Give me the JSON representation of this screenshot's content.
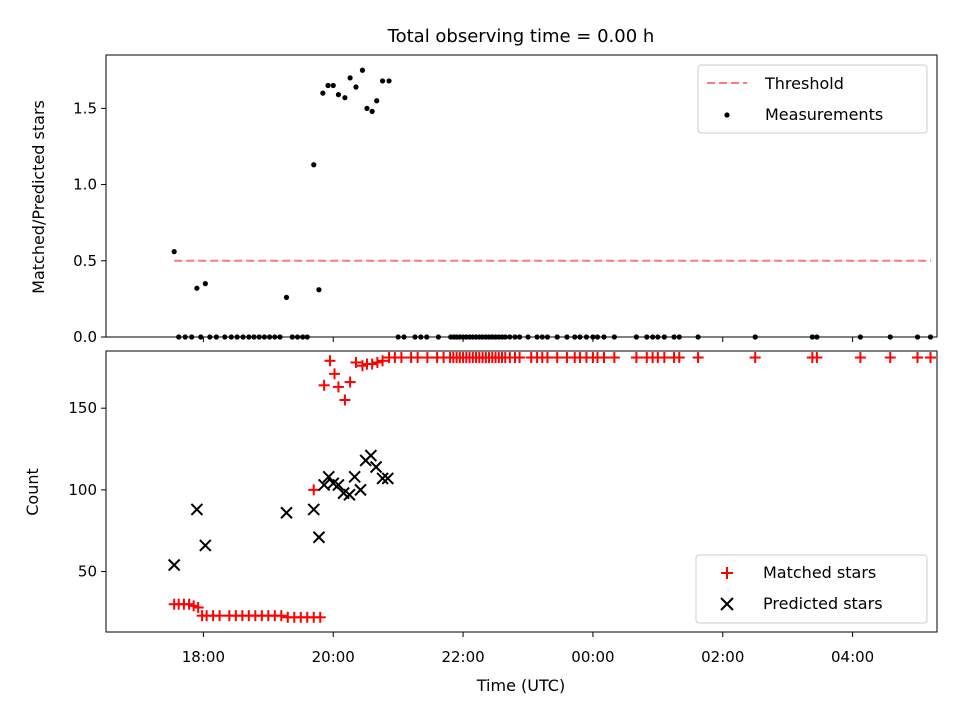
{
  "chart_data": {
    "type": "scatter",
    "title": "Total observing time = 0.00 h",
    "xlabel": "Time (UTC)",
    "x_unit": "hours since 17:00 UTC",
    "xlim": [
      16.5,
      29.3
    ],
    "xticks": [
      {
        "value": 18,
        "label": "18:00"
      },
      {
        "value": 20,
        "label": "20:00"
      },
      {
        "value": 22,
        "label": "22:00"
      },
      {
        "value": 24,
        "label": "00:00"
      },
      {
        "value": 26,
        "label": "02:00"
      },
      {
        "value": 28,
        "label": "04:00"
      }
    ],
    "panels": [
      {
        "id": "ratio",
        "ylabel": "Matched/Predicted stars",
        "ylim": [
          0,
          1.85
        ],
        "yticks": [
          {
            "value": 0.0,
            "label": "0.0"
          },
          {
            "value": 0.5,
            "label": "0.5"
          },
          {
            "value": 1.0,
            "label": "1.0"
          },
          {
            "value": 1.5,
            "label": "1.5"
          }
        ],
        "legend": {
          "position": "upper right",
          "entries": [
            {
              "name": "Threshold",
              "style": "dashed-line",
              "color": "#ff7777"
            },
            {
              "name": "Measurements",
              "style": "dot",
              "color": "#000000"
            }
          ]
        },
        "threshold": {
          "name": "Threshold",
          "value": 0.5,
          "x_range": [
            17.55,
            29.45
          ],
          "color": "#ff7777"
        },
        "series": [
          {
            "name": "Measurements",
            "marker": "dot",
            "color": "#000000",
            "points": [
              [
                17.55,
                0.56
              ],
              [
                17.62,
                0
              ],
              [
                17.72,
                0
              ],
              [
                17.82,
                0
              ],
              [
                17.9,
                0.32
              ],
              [
                17.96,
                0
              ],
              [
                18.03,
                0.35
              ],
              [
                18.1,
                0
              ],
              [
                18.2,
                0
              ],
              [
                18.33,
                0
              ],
              [
                18.43,
                0
              ],
              [
                18.52,
                0
              ],
              [
                18.61,
                0
              ],
              [
                18.7,
                0
              ],
              [
                18.78,
                0
              ],
              [
                18.86,
                0
              ],
              [
                18.94,
                0
              ],
              [
                19.02,
                0
              ],
              [
                19.1,
                0
              ],
              [
                19.18,
                0
              ],
              [
                19.28,
                0.26
              ],
              [
                19.37,
                0
              ],
              [
                19.45,
                0
              ],
              [
                19.53,
                0
              ],
              [
                19.6,
                0
              ],
              [
                19.7,
                1.13
              ],
              [
                19.78,
                0.31
              ],
              [
                19.84,
                1.6
              ],
              [
                19.92,
                1.65
              ],
              [
                20.0,
                1.65
              ],
              [
                20.08,
                1.59
              ],
              [
                20.18,
                1.57
              ],
              [
                20.26,
                1.7
              ],
              [
                20.35,
                1.64
              ],
              [
                20.45,
                1.75
              ],
              [
                20.52,
                1.5
              ],
              [
                20.6,
                1.48
              ],
              [
                20.67,
                1.55
              ],
              [
                20.76,
                1.68
              ],
              [
                20.86,
                1.68
              ],
              [
                21.0,
                0
              ],
              [
                21.09,
                0
              ],
              [
                21.26,
                0
              ],
              [
                21.35,
                0
              ],
              [
                21.44,
                0
              ],
              [
                21.62,
                0
              ],
              [
                21.81,
                0
              ],
              [
                21.86,
                0
              ],
              [
                21.9,
                0
              ],
              [
                21.95,
                0
              ],
              [
                22.0,
                0
              ],
              [
                22.05,
                0
              ],
              [
                22.1,
                0
              ],
              [
                22.15,
                0
              ],
              [
                22.2,
                0
              ],
              [
                22.25,
                0
              ],
              [
                22.3,
                0
              ],
              [
                22.35,
                0
              ],
              [
                22.4,
                0
              ],
              [
                22.45,
                0
              ],
              [
                22.5,
                0
              ],
              [
                22.55,
                0
              ],
              [
                22.6,
                0
              ],
              [
                22.65,
                0
              ],
              [
                22.72,
                0
              ],
              [
                22.8,
                0
              ],
              [
                22.87,
                0
              ],
              [
                23.0,
                0
              ],
              [
                23.14,
                0
              ],
              [
                23.22,
                0
              ],
              [
                23.3,
                0
              ],
              [
                23.45,
                0
              ],
              [
                23.6,
                0
              ],
              [
                23.72,
                0
              ],
              [
                23.8,
                0
              ],
              [
                23.9,
                0
              ],
              [
                24.0,
                0
              ],
              [
                24.07,
                0
              ],
              [
                24.17,
                0
              ],
              [
                24.33,
                0
              ],
              [
                24.67,
                0
              ],
              [
                24.83,
                0
              ],
              [
                24.92,
                0
              ],
              [
                25.0,
                0
              ],
              [
                25.1,
                0
              ],
              [
                25.25,
                0
              ],
              [
                25.33,
                0
              ],
              [
                25.62,
                0
              ],
              [
                26.5,
                0
              ],
              [
                27.38,
                0
              ],
              [
                27.45,
                0
              ],
              [
                28.12,
                0
              ],
              [
                28.58,
                0
              ],
              [
                29.0,
                0
              ],
              [
                29.2,
                0
              ]
            ]
          }
        ]
      },
      {
        "id": "count",
        "ylabel": "Count",
        "ylim": [
          13,
          185
        ],
        "yticks": [
          {
            "value": 50,
            "label": "50"
          },
          {
            "value": 100,
            "label": "100"
          },
          {
            "value": 150,
            "label": "150"
          }
        ],
        "legend": {
          "position": "lower right",
          "entries": [
            {
              "name": "Matched stars",
              "style": "plus",
              "color": "#ff0000"
            },
            {
              "name": "Predicted stars",
              "style": "x",
              "color": "#000000"
            }
          ]
        },
        "series": [
          {
            "name": "Matched stars",
            "marker": "plus",
            "color": "#ff0000",
            "points": [
              [
                17.55,
                30
              ],
              [
                17.62,
                30
              ],
              [
                17.7,
                30
              ],
              [
                17.78,
                30
              ],
              [
                17.85,
                29
              ],
              [
                17.92,
                28
              ],
              [
                17.98,
                23
              ],
              [
                18.05,
                23
              ],
              [
                18.15,
                23
              ],
              [
                18.25,
                23
              ],
              [
                18.4,
                23
              ],
              [
                18.5,
                23
              ],
              [
                18.6,
                23
              ],
              [
                18.7,
                23
              ],
              [
                18.8,
                23
              ],
              [
                18.9,
                23
              ],
              [
                19.0,
                23
              ],
              [
                19.1,
                23
              ],
              [
                19.2,
                23
              ],
              [
                19.3,
                22
              ],
              [
                19.4,
                22
              ],
              [
                19.5,
                22
              ],
              [
                19.6,
                22
              ],
              [
                19.7,
                22
              ],
              [
                19.8,
                22
              ],
              [
                19.7,
                100
              ],
              [
                19.86,
                164
              ],
              [
                19.95,
                179
              ],
              [
                20.02,
                171
              ],
              [
                20.08,
                163
              ],
              [
                20.18,
                155
              ],
              [
                20.26,
                166
              ],
              [
                20.35,
                178
              ],
              [
                20.45,
                176
              ],
              [
                20.52,
                177
              ],
              [
                20.6,
                177
              ],
              [
                20.68,
                178
              ],
              [
                20.76,
                179
              ],
              [
                20.86,
                181
              ],
              [
                20.95,
                181
              ],
              [
                21.05,
                181
              ],
              [
                21.2,
                181
              ],
              [
                21.3,
                181
              ],
              [
                21.45,
                181
              ],
              [
                21.6,
                181
              ],
              [
                21.7,
                181
              ],
              [
                21.8,
                181
              ],
              [
                21.85,
                181
              ],
              [
                21.9,
                181
              ],
              [
                21.95,
                181
              ],
              [
                22.0,
                181
              ],
              [
                22.05,
                181
              ],
              [
                22.1,
                181
              ],
              [
                22.15,
                181
              ],
              [
                22.2,
                181
              ],
              [
                22.25,
                181
              ],
              [
                22.3,
                181
              ],
              [
                22.35,
                181
              ],
              [
                22.4,
                181
              ],
              [
                22.45,
                181
              ],
              [
                22.5,
                181
              ],
              [
                22.55,
                181
              ],
              [
                22.6,
                181
              ],
              [
                22.65,
                181
              ],
              [
                22.72,
                181
              ],
              [
                22.8,
                181
              ],
              [
                22.87,
                181
              ],
              [
                23.05,
                181
              ],
              [
                23.14,
                181
              ],
              [
                23.22,
                181
              ],
              [
                23.3,
                181
              ],
              [
                23.45,
                181
              ],
              [
                23.6,
                181
              ],
              [
                23.72,
                181
              ],
              [
                23.8,
                181
              ],
              [
                23.9,
                181
              ],
              [
                24.0,
                181
              ],
              [
                24.07,
                181
              ],
              [
                24.17,
                181
              ],
              [
                24.33,
                181
              ],
              [
                24.67,
                181
              ],
              [
                24.83,
                181
              ],
              [
                24.92,
                181
              ],
              [
                25.0,
                181
              ],
              [
                25.1,
                181
              ],
              [
                25.25,
                181
              ],
              [
                25.33,
                181
              ],
              [
                25.62,
                181
              ],
              [
                26.5,
                181
              ],
              [
                27.38,
                181
              ],
              [
                27.45,
                181
              ],
              [
                28.12,
                181
              ],
              [
                28.58,
                181
              ],
              [
                29.0,
                181
              ],
              [
                29.2,
                181
              ]
            ]
          },
          {
            "name": "Predicted stars",
            "marker": "x",
            "color": "#000000",
            "points": [
              [
                17.55,
                54
              ],
              [
                17.9,
                88
              ],
              [
                18.03,
                66
              ],
              [
                19.28,
                86
              ],
              [
                19.7,
                88
              ],
              [
                19.78,
                71
              ],
              [
                19.86,
                103
              ],
              [
                19.93,
                108
              ],
              [
                20.0,
                104
              ],
              [
                20.08,
                103
              ],
              [
                20.16,
                98
              ],
              [
                20.25,
                97
              ],
              [
                20.33,
                108
              ],
              [
                20.42,
                100
              ],
              [
                20.5,
                118
              ],
              [
                20.58,
                121
              ],
              [
                20.66,
                114
              ],
              [
                20.76,
                107
              ],
              [
                20.84,
                107
              ]
            ]
          }
        ]
      }
    ]
  }
}
